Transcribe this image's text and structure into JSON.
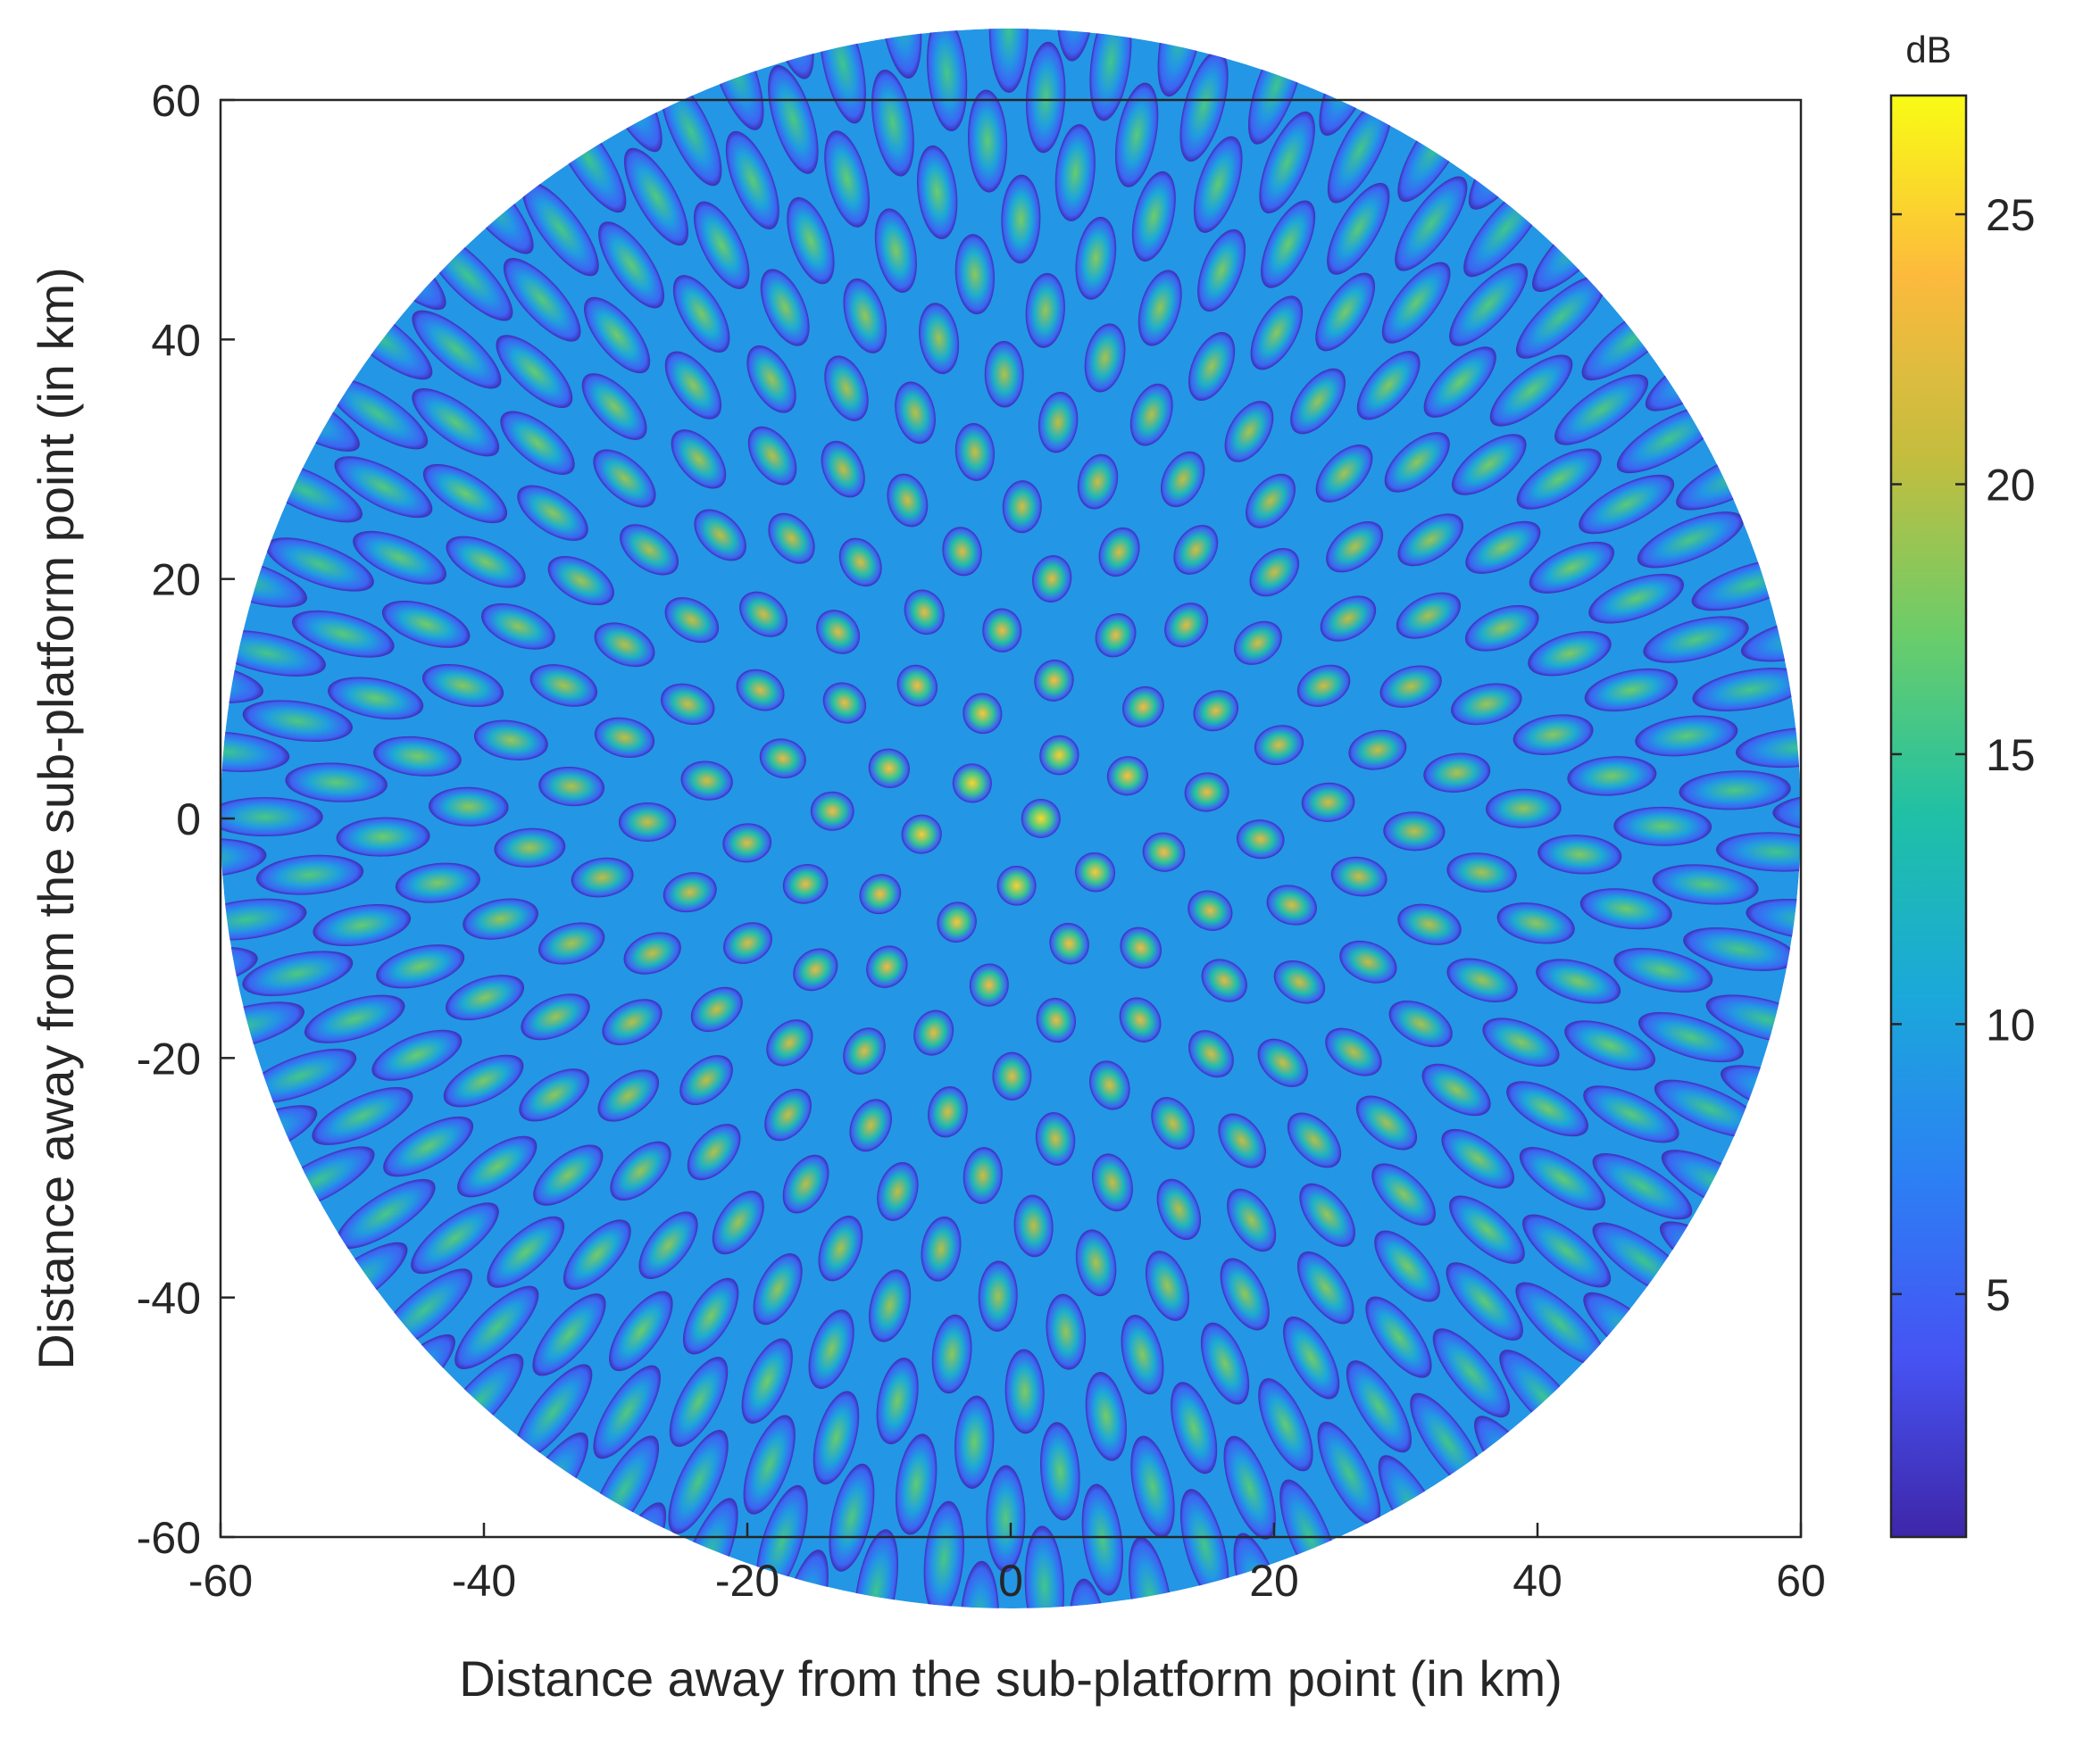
{
  "chart_data": {
    "type": "heatmap",
    "title": "",
    "xlabel": "Distance away from the sub-platform point (in km)",
    "ylabel": "Distance away from the sub-platform point (in km)",
    "xlim": [
      -60,
      60
    ],
    "ylim": [
      -60,
      60
    ],
    "xticks": [
      "-60",
      "-40",
      "-20",
      "0",
      "20",
      "40",
      "60"
    ],
    "yticks": [
      "60",
      "40",
      "20",
      "0",
      "-20",
      "-40",
      "-60"
    ],
    "coverage_radius_km": 60,
    "pattern": "radial beam footprints arranged on a golden-angle spiral, one beam per ring position, each footprint bright (high dB) at its centre and dark (low dB) at its edges",
    "beam_count": 400,
    "center_peak_dB": 26,
    "outer_peak_dB": 15,
    "edge_min_dB": 1,
    "colorbar": {
      "title": "dB",
      "colormap": "parula",
      "range": [
        0.5,
        27.2
      ],
      "ticks": [
        "5",
        "10",
        "15",
        "20",
        "25"
      ],
      "tick_values": [
        5,
        10,
        15,
        20,
        25
      ],
      "colors": [
        "#3e26a8",
        "#4653f3",
        "#2c80f4",
        "#1ba8da",
        "#1fc0a6",
        "#6acd6a",
        "#c4bd3e",
        "#fcba3d",
        "#f9fb15"
      ]
    },
    "grid": false,
    "legend": "none"
  }
}
